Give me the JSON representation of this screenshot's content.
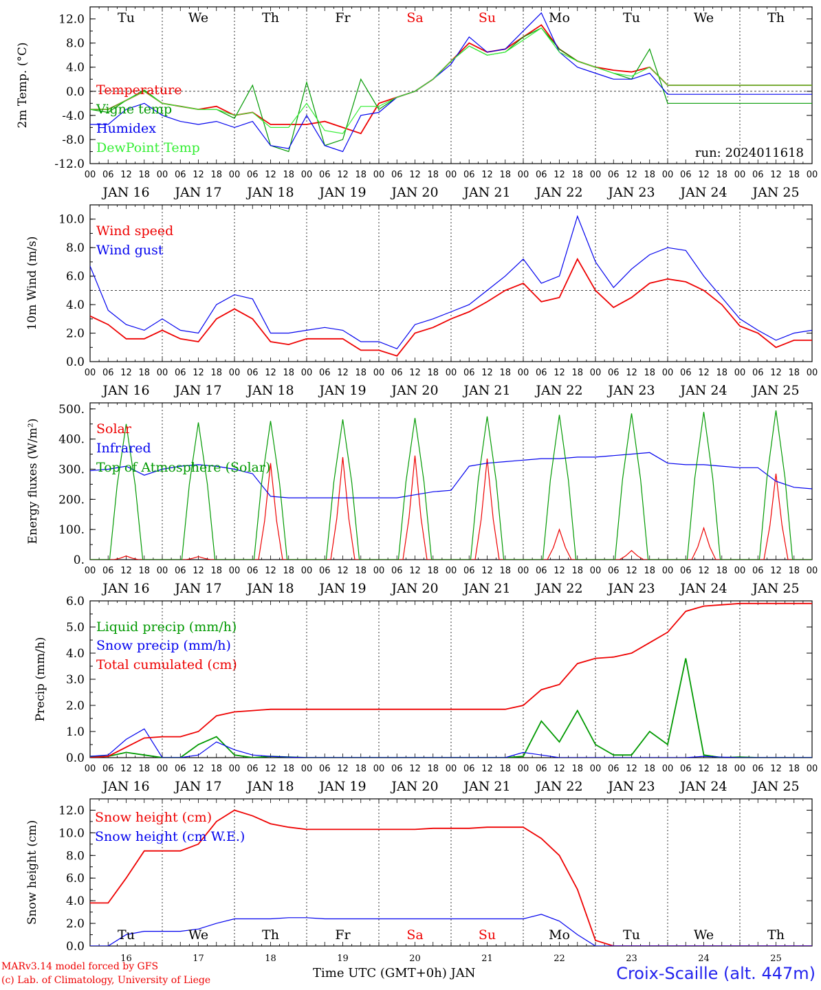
{
  "chart_data": [
    {
      "type": "line",
      "ylabel": "2m Temp. (°C)",
      "ylim": [
        -12,
        14
      ],
      "yticks": [
        "12.0",
        "8.0",
        "4.0",
        "0.0",
        "-4.0",
        "-8.0",
        "-12.0"
      ],
      "ytick_values": [
        12,
        8,
        4,
        0,
        -4,
        -8,
        -12
      ],
      "dashed_y": 0,
      "annotation": "run: 2024011618",
      "x_hours": [
        0,
        6,
        12,
        18,
        24,
        30,
        36,
        42,
        48,
        54,
        60,
        66,
        72,
        78,
        84,
        90,
        96,
        102,
        108,
        114,
        120,
        126,
        132,
        138,
        144,
        150,
        156,
        162,
        168,
        174,
        180,
        186,
        192,
        198,
        204,
        210,
        216,
        222,
        228,
        234,
        240
      ],
      "series": [
        {
          "name": "Temperature",
          "color": "#ee0000",
          "values": [
            -3,
            -3,
            -1.5,
            0,
            -2,
            -2.5,
            -3,
            -2.5,
            -4,
            -3.5,
            -5.5,
            -5.5,
            -5.5,
            -5,
            -6,
            -7,
            -2,
            -1,
            0,
            2,
            5,
            8,
            6.5,
            7,
            9,
            11,
            7,
            5,
            4,
            3.5,
            3.2,
            4,
            1,
            1,
            1,
            1,
            1,
            1,
            1,
            1,
            1
          ]
        },
        {
          "name": "Vigne temp",
          "color": "#009900",
          "values": [
            -3,
            -3.5,
            -1.5,
            0.2,
            -2,
            -2.5,
            -3,
            -3,
            -4.5,
            1,
            -9,
            -10,
            1.5,
            -9,
            -8,
            2,
            -3,
            -1,
            0,
            2,
            5,
            7.5,
            6,
            6.5,
            9,
            10.5,
            7,
            5,
            4,
            3,
            2,
            7,
            -2,
            -2,
            -2,
            -2,
            -2,
            -2,
            -2,
            -2,
            -2
          ]
        },
        {
          "name": "Humidex",
          "color": "#0000ee",
          "values": [
            -5.5,
            -5.5,
            -3,
            -2,
            -4,
            -5,
            -5.5,
            -5,
            -6,
            -5,
            -9,
            -9.5,
            -4,
            -9,
            -10,
            -4,
            -3.5,
            -1,
            0,
            2,
            4.5,
            9,
            6.5,
            7,
            10,
            13,
            6.5,
            4,
            3,
            2,
            2,
            3,
            -0.5,
            -0.5,
            -0.5,
            -0.5,
            -0.5,
            -0.5,
            -0.5,
            -0.5,
            -0.5
          ]
        },
        {
          "name": "DewPoint Temp",
          "color": "#33ee33",
          "values": [
            -3,
            -3,
            -1.5,
            0,
            -2,
            -2.5,
            -3,
            -3,
            -4,
            -3.5,
            -6,
            -6,
            -2,
            -6.5,
            -7,
            -2.5,
            -2.5,
            -1,
            0,
            2,
            5,
            7.5,
            6,
            6.5,
            8.5,
            10.5,
            6.5,
            5,
            4,
            3,
            2.5,
            4,
            1,
            1,
            1,
            1,
            1,
            1,
            1,
            1,
            1
          ]
        }
      ],
      "day_labels": [
        "Tu",
        "We",
        "Th",
        "Fr",
        "Sa",
        "Su",
        "Mo",
        "Tu",
        "We",
        "Th"
      ],
      "day_label_colors": [
        "#000",
        "#000",
        "#000",
        "#000",
        "#ee0000",
        "#ee0000",
        "#000",
        "#000",
        "#000",
        "#000"
      ]
    },
    {
      "type": "line",
      "ylabel": "10m Wind (m/s)",
      "ylim": [
        0,
        11
      ],
      "yticks": [
        "10.0",
        "8.0",
        "6.0",
        "4.0",
        "2.0",
        "0.0"
      ],
      "ytick_values": [
        10,
        8,
        6,
        4,
        2,
        0
      ],
      "dashed_y": 5,
      "x_hours": [
        0,
        6,
        12,
        18,
        24,
        30,
        36,
        42,
        48,
        54,
        60,
        66,
        72,
        78,
        84,
        90,
        96,
        102,
        108,
        114,
        120,
        126,
        132,
        138,
        144,
        150,
        156,
        162,
        168,
        174,
        180,
        186,
        192,
        198,
        204,
        210,
        216,
        222,
        228,
        234,
        240
      ],
      "series": [
        {
          "name": "Wind speed",
          "color": "#ee0000",
          "values": [
            3.2,
            2.6,
            1.6,
            1.6,
            2.2,
            1.6,
            1.4,
            3,
            3.7,
            3,
            1.4,
            1.2,
            1.6,
            1.6,
            1.6,
            0.8,
            0.8,
            0.4,
            2,
            2.4,
            3,
            3.5,
            4.2,
            5,
            5.5,
            4.2,
            4.5,
            7.2,
            5,
            3.8,
            4.5,
            5.5,
            5.8,
            5.6,
            5,
            4,
            2.5,
            2,
            1,
            1.5,
            1.5
          ]
        },
        {
          "name": "Wind gust",
          "color": "#0000ee",
          "values": [
            6.7,
            3.6,
            2.6,
            2.2,
            3,
            2.2,
            2,
            4,
            4.7,
            4.4,
            2,
            2,
            2.2,
            2.4,
            2.2,
            1.4,
            1.4,
            0.9,
            2.6,
            3,
            3.5,
            4,
            5,
            6,
            7.2,
            5.5,
            6,
            10.2,
            7,
            5.2,
            6.5,
            7.5,
            8,
            7.8,
            6,
            4.5,
            3,
            2.2,
            1.5,
            2,
            2.2
          ]
        }
      ]
    },
    {
      "type": "line",
      "ylabel": "Energy fluxes (W/m²)",
      "ylim": [
        0,
        520
      ],
      "yticks": [
        "500.",
        "400.",
        "300.",
        "200.",
        "100.",
        "0."
      ],
      "ytick_values": [
        500,
        400,
        300,
        200,
        100,
        0
      ],
      "x_hours": [
        0,
        6,
        12,
        18,
        24,
        30,
        36,
        42,
        48,
        54,
        60,
        66,
        72,
        78,
        84,
        90,
        96,
        102,
        108,
        114,
        120,
        126,
        132,
        138,
        144,
        150,
        156,
        162,
        168,
        174,
        180,
        186,
        192,
        198,
        204,
        210,
        216,
        222,
        228,
        234,
        240
      ],
      "series": [
        {
          "name": "Solar",
          "color": "#ee0000",
          "solar_peaks": [
            12,
            10,
            320,
            340,
            345,
            335,
            100,
            30,
            105,
            285
          ]
        },
        {
          "name": "Infrared",
          "color": "#0000ee",
          "values": [
            295,
            300,
            310,
            280,
            300,
            310,
            315,
            310,
            300,
            285,
            210,
            205,
            205,
            205,
            205,
            205,
            205,
            205,
            215,
            225,
            230,
            310,
            320,
            325,
            330,
            335,
            335,
            340,
            340,
            345,
            350,
            355,
            320,
            315,
            315,
            310,
            305,
            305,
            260,
            240,
            235
          ]
        },
        {
          "name": "Top of Atmosphere (Solar)",
          "color": "#009900",
          "toa_peaks": [
            450,
            455,
            460,
            465,
            470,
            475,
            480,
            485,
            490,
            495
          ]
        }
      ]
    },
    {
      "type": "line",
      "ylabel": "Precip (mm/h)",
      "ylim": [
        0,
        6
      ],
      "yticks": [
        "6.0",
        "5.0",
        "4.0",
        "3.0",
        "2.0",
        "1.0",
        "0.0"
      ],
      "ytick_values": [
        6,
        5,
        4,
        3,
        2,
        1,
        0
      ],
      "x_hours": [
        0,
        6,
        12,
        18,
        24,
        30,
        36,
        42,
        48,
        54,
        60,
        66,
        72,
        78,
        84,
        90,
        96,
        102,
        108,
        114,
        120,
        126,
        132,
        138,
        144,
        150,
        156,
        162,
        168,
        174,
        180,
        186,
        192,
        198,
        204,
        210,
        216,
        222,
        228,
        234,
        240
      ],
      "series": [
        {
          "name": "Liquid precip (mm/h)",
          "color": "#009900",
          "values": [
            0.05,
            0.05,
            0.2,
            0.1,
            0,
            0,
            0.5,
            0.8,
            0.1,
            0,
            0.05,
            0.02,
            0,
            0,
            0,
            0,
            0,
            0,
            0,
            0,
            0,
            0,
            0,
            0,
            0.05,
            1.4,
            0.6,
            1.8,
            0.5,
            0.1,
            0.1,
            1,
            0.5,
            3.8,
            0.1,
            0,
            0.02,
            0,
            0,
            0,
            0
          ]
        },
        {
          "name": "Snow precip (mm/h)",
          "color": "#0000ee",
          "values": [
            0.05,
            0.1,
            0.7,
            1.1,
            0,
            0,
            0.1,
            0.6,
            0.3,
            0.1,
            0.05,
            0.02,
            0,
            0,
            0,
            0,
            0,
            0,
            0,
            0,
            0,
            0,
            0,
            0,
            0.2,
            0.1,
            0,
            0,
            0,
            0,
            0,
            0,
            0,
            0,
            0.05,
            0.02,
            0,
            0,
            0,
            0,
            0
          ]
        },
        {
          "name": "Total cumulated (cm)",
          "color": "#ee0000",
          "values": [
            0,
            0.05,
            0.4,
            0.75,
            0.8,
            0.8,
            1,
            1.6,
            1.75,
            1.8,
            1.85,
            1.85,
            1.85,
            1.85,
            1.85,
            1.85,
            1.85,
            1.85,
            1.85,
            1.85,
            1.85,
            1.85,
            1.85,
            1.85,
            2,
            2.6,
            2.8,
            3.6,
            3.8,
            3.85,
            4,
            4.4,
            4.8,
            5.6,
            5.8,
            5.85,
            5.9,
            5.9,
            5.9,
            5.9,
            5.9
          ]
        }
      ]
    },
    {
      "type": "line",
      "ylabel": "Snow height (cm)",
      "ylim": [
        0,
        13
      ],
      "yticks": [
        "12.0",
        "10.0",
        "8.0",
        "6.0",
        "4.0",
        "2.0",
        "0.0"
      ],
      "ytick_values": [
        12,
        10,
        8,
        6,
        4,
        2,
        0
      ],
      "x_hours": [
        0,
        6,
        12,
        18,
        24,
        30,
        36,
        42,
        48,
        54,
        60,
        66,
        72,
        78,
        84,
        90,
        96,
        102,
        108,
        114,
        120,
        126,
        132,
        138,
        144,
        150,
        156,
        162,
        168,
        174,
        180,
        186,
        192,
        198,
        204,
        210,
        216,
        222,
        228,
        234,
        240
      ],
      "series": [
        {
          "name": "Snow height (cm)",
          "color": "#ee0000",
          "values": [
            3.8,
            3.8,
            6,
            8.4,
            8.4,
            8.4,
            9,
            11,
            12,
            11.5,
            10.8,
            10.5,
            10.3,
            10.3,
            10.3,
            10.3,
            10.3,
            10.3,
            10.3,
            10.4,
            10.4,
            10.4,
            10.5,
            10.5,
            10.5,
            9.5,
            8,
            5,
            0.5,
            0,
            0,
            0,
            0,
            0,
            0,
            0,
            0,
            0,
            0,
            0,
            0
          ]
        },
        {
          "name": "Snow height (cm W.E.)",
          "color": "#0000ee",
          "values": [
            0,
            0,
            1,
            1.3,
            1.3,
            1.3,
            1.5,
            2,
            2.4,
            2.4,
            2.4,
            2.5,
            2.5,
            2.4,
            2.4,
            2.4,
            2.4,
            2.4,
            2.4,
            2.4,
            2.4,
            2.4,
            2.4,
            2.4,
            2.4,
            2.8,
            2.2,
            1,
            0,
            0,
            0,
            0,
            0,
            0,
            0,
            0,
            0,
            0,
            0,
            0,
            0
          ]
        }
      ],
      "day_labels": [
        "Tu",
        "We",
        "Th",
        "Fr",
        "Sa",
        "Su",
        "Mo",
        "Tu",
        "We",
        "Th"
      ],
      "day_label_colors": [
        "#000",
        "#000",
        "#000",
        "#000",
        "#ee0000",
        "#ee0000",
        "#000",
        "#000",
        "#000",
        "#000"
      ],
      "day_numbers": [
        "16",
        "17",
        "18",
        "19",
        "20",
        "21",
        "22",
        "23",
        "24",
        "25"
      ]
    }
  ],
  "x_axis": {
    "hour_ticks": [
      "00",
      "06",
      "12",
      "18"
    ],
    "date_labels": [
      "JAN 16",
      "JAN 17",
      "JAN 18",
      "JAN 19",
      "JAN 20",
      "JAN 21",
      "JAN 22",
      "JAN 23",
      "JAN 24",
      "JAN 25"
    ],
    "final_tick": "00",
    "title": "Time UTC (GMT+0h) JAN"
  },
  "footer": {
    "credit_line1": "MARv3.14 model forced by GFS",
    "credit_line2": "(c) Lab. of Climatology, University of Liege",
    "station": "Croix-Scaille (alt. 447m)"
  }
}
